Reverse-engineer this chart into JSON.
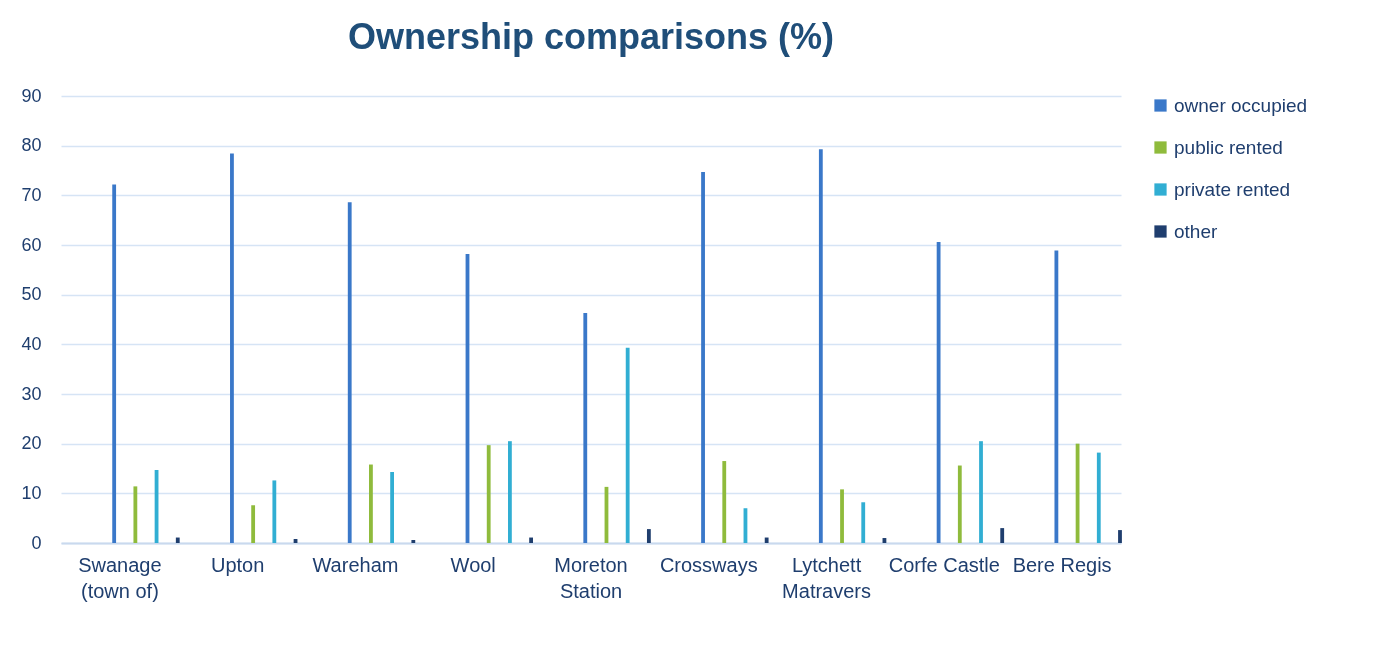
{
  "chart_data": {
    "type": "bar",
    "title": "Ownership comparisons (%)",
    "categories": [
      "Swanage (town of)",
      "Upton",
      "Wareham",
      "Wool",
      "Moreton Station",
      "Crossways",
      "Lytchett Matravers",
      "Corfe Castle",
      "Bere Regis"
    ],
    "series": [
      {
        "name": "owner occupied",
        "color": "#3a78c9",
        "values": [
          72.2,
          78.4,
          68.6,
          58.2,
          46.3,
          74.7,
          79.3,
          60.6,
          58.9
        ]
      },
      {
        "name": "public rented",
        "color": "#8fbb3c",
        "values": [
          11.4,
          7.6,
          15.8,
          19.7,
          11.3,
          16.5,
          10.8,
          15.6,
          20.0
        ]
      },
      {
        "name": "private rented",
        "color": "#31aed3",
        "values": [
          14.7,
          12.6,
          14.3,
          20.5,
          39.3,
          7.0,
          8.2,
          20.5,
          18.2
        ]
      },
      {
        "name": "other",
        "color": "#1f3e6e",
        "values": [
          1.1,
          0.8,
          0.6,
          1.1,
          2.8,
          1.1,
          1.0,
          3.0,
          2.6
        ]
      }
    ],
    "ylim": [
      0,
      90
    ],
    "yticks": [
      0,
      10,
      20,
      30,
      40,
      50,
      60,
      70,
      80,
      90
    ],
    "grid": "y",
    "legend": "right"
  }
}
